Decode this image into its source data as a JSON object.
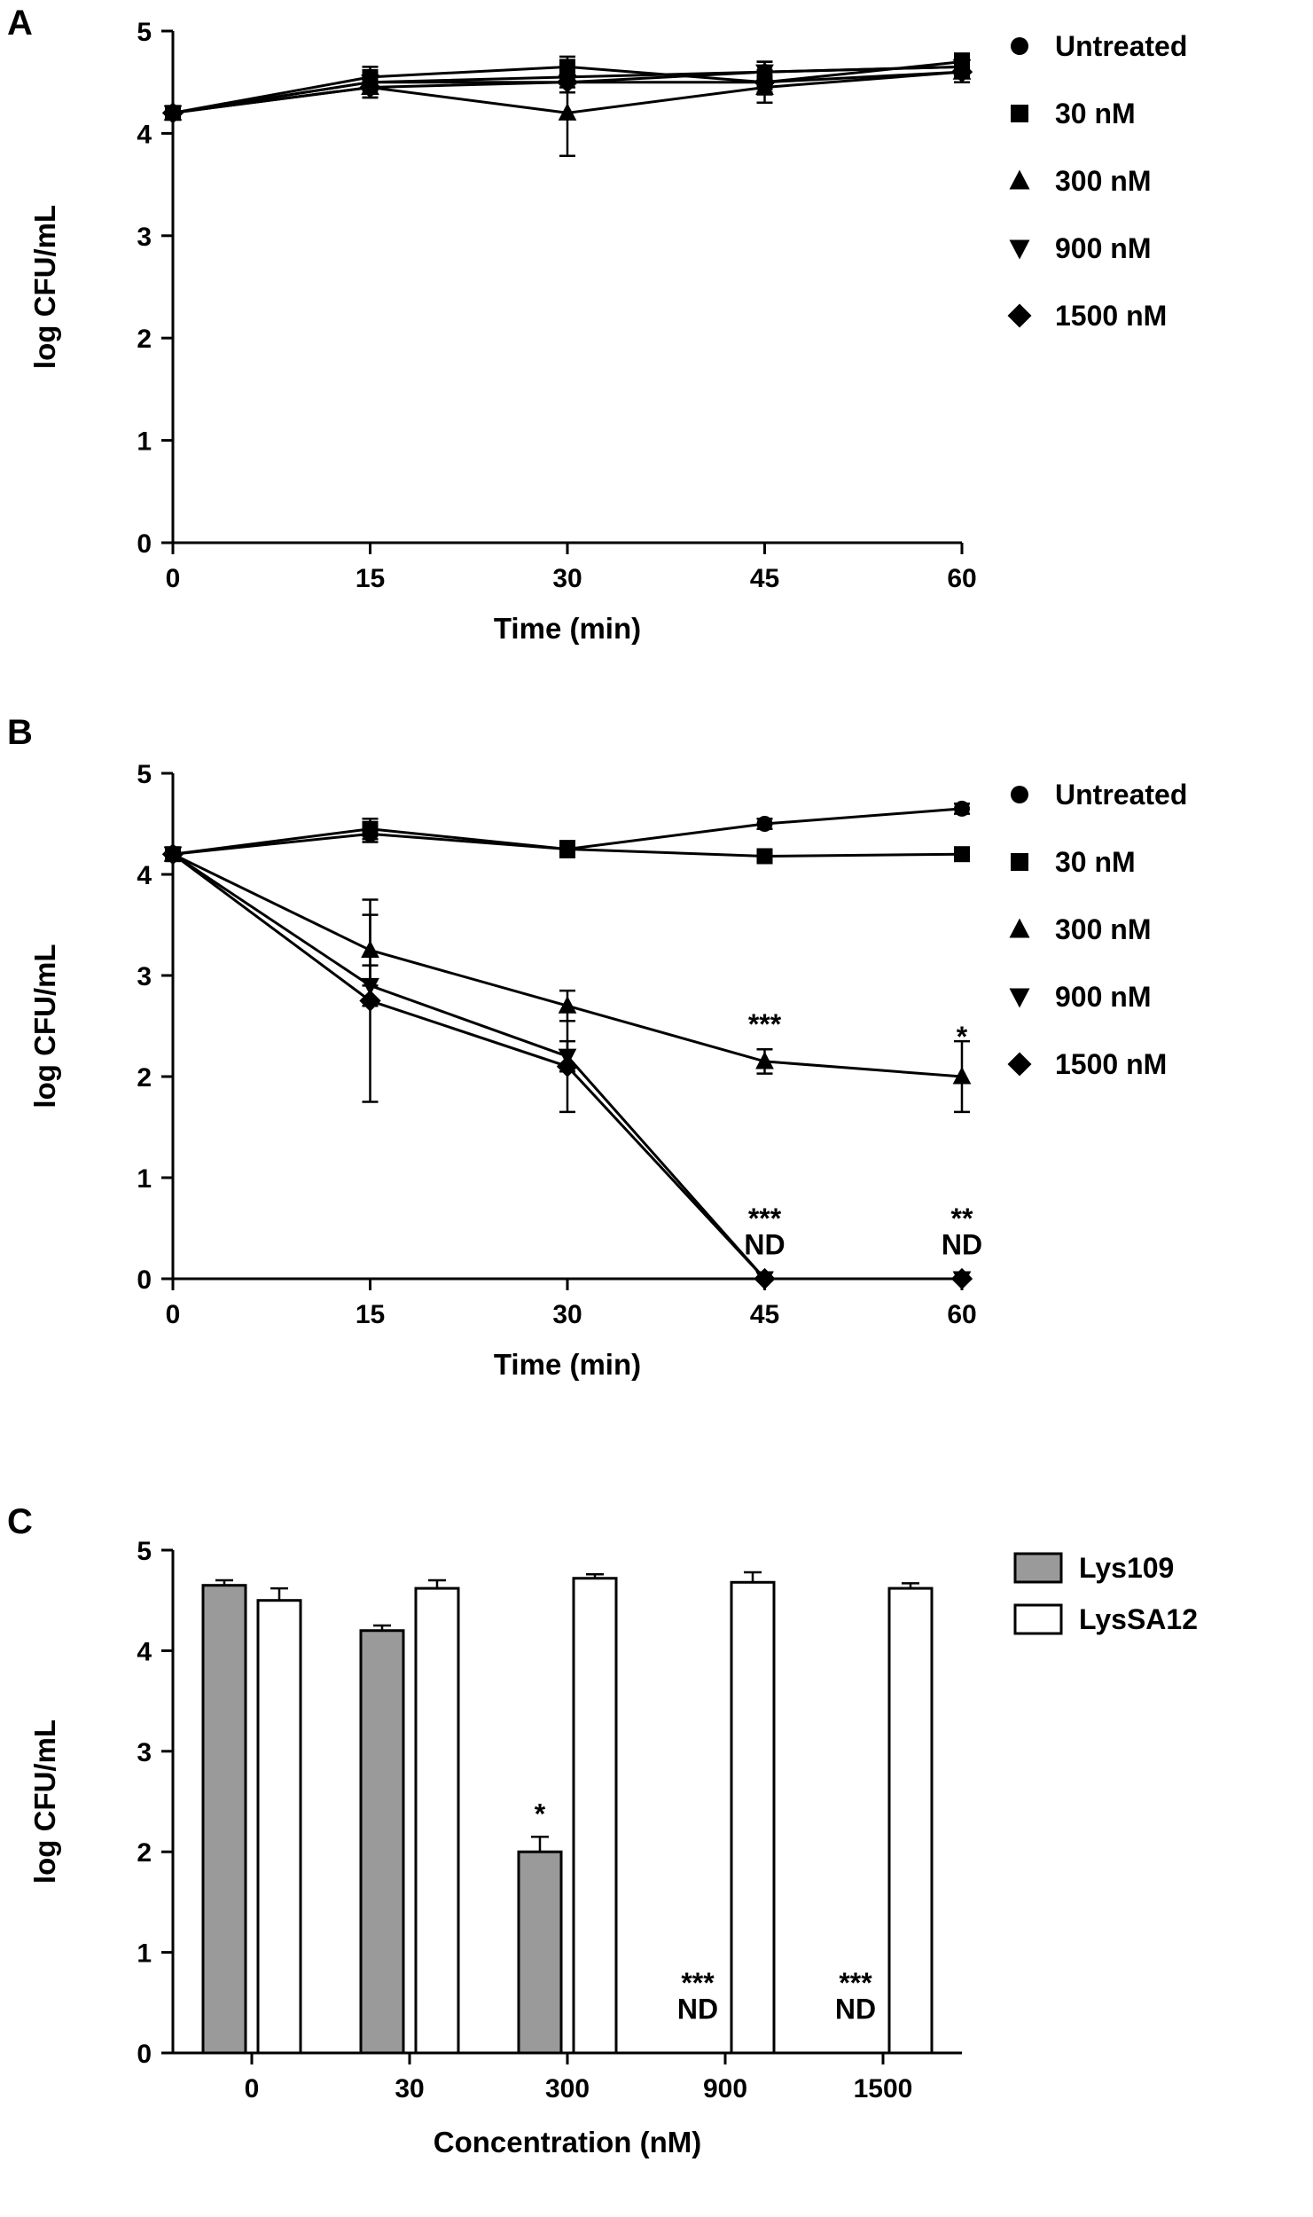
{
  "panels": [
    {
      "label": "A"
    },
    {
      "label": "B"
    },
    {
      "label": "C"
    }
  ],
  "chart_data": [
    {
      "panel": "A",
      "type": "line",
      "title": "",
      "xlabel": "Time (min)",
      "ylabel": "log CFU/mL",
      "x": [
        0,
        15,
        30,
        45,
        60
      ],
      "xlim": [
        0,
        60
      ],
      "ylim": [
        0,
        5
      ],
      "xticks": [
        0,
        15,
        30,
        45,
        60
      ],
      "yticks": [
        0,
        1,
        2,
        3,
        4,
        5
      ],
      "legend_position": "right",
      "series": [
        {
          "name": "Untreated",
          "marker": "circle",
          "values": [
            4.2,
            4.5,
            4.55,
            4.6,
            4.65
          ],
          "errors": [
            0.05,
            0.08,
            0.1,
            0.1,
            0.08
          ]
        },
        {
          "name": "30 nM",
          "marker": "square",
          "values": [
            4.2,
            4.55,
            4.65,
            4.5,
            4.7
          ],
          "errors": [
            0.05,
            0.1,
            0.1,
            0.12,
            0.08
          ]
        },
        {
          "name": "300 nM",
          "marker": "triangle-up",
          "values": [
            4.2,
            4.45,
            4.2,
            4.45,
            4.6
          ],
          "errors": [
            0.05,
            0.1,
            0.42,
            0.15,
            0.1
          ]
        },
        {
          "name": "900 nM",
          "marker": "triangle-down",
          "values": [
            4.2,
            4.5,
            4.5,
            4.6,
            4.65
          ],
          "errors": [
            0.05,
            0.08,
            0.1,
            0.1,
            0.1
          ]
        },
        {
          "name": "1500 nM",
          "marker": "diamond",
          "values": [
            4.2,
            4.45,
            4.5,
            4.5,
            4.6
          ],
          "errors": [
            0.05,
            0.1,
            0.1,
            0.1,
            0.1
          ]
        }
      ],
      "annotations": []
    },
    {
      "panel": "B",
      "type": "line",
      "title": "",
      "xlabel": "Time (min)",
      "ylabel": "log CFU/mL",
      "x": [
        0,
        15,
        30,
        45,
        60
      ],
      "xlim": [
        0,
        60
      ],
      "ylim": [
        0,
        5
      ],
      "xticks": [
        0,
        15,
        30,
        45,
        60
      ],
      "yticks": [
        0,
        1,
        2,
        3,
        4,
        5
      ],
      "legend_position": "right",
      "series": [
        {
          "name": "Untreated",
          "marker": "circle",
          "values": [
            4.2,
            4.4,
            4.25,
            4.5,
            4.65
          ],
          "errors": [
            0.05,
            0.08,
            0.05,
            0.05,
            0.05
          ]
        },
        {
          "name": "30 nM",
          "marker": "square",
          "values": [
            4.2,
            4.45,
            4.25,
            4.18,
            4.2
          ],
          "errors": [
            0.05,
            0.1,
            0.08,
            0.05,
            0.05
          ]
        },
        {
          "name": "300 nM",
          "marker": "triangle-up",
          "values": [
            4.2,
            3.25,
            2.7,
            2.15,
            2.0
          ],
          "errors": [
            0.05,
            0.35,
            0.15,
            0.12,
            0.35
          ]
        },
        {
          "name": "900 nM",
          "marker": "triangle-down",
          "values": [
            4.2,
            2.9,
            2.2,
            0,
            0
          ],
          "errors": [
            0.05,
            0.2,
            0.15,
            0,
            0
          ]
        },
        {
          "name": "1500 nM",
          "marker": "diamond",
          "values": [
            4.2,
            2.75,
            2.1,
            0,
            0
          ],
          "errors": [
            0.05,
            1.0,
            0.45,
            0,
            0
          ]
        }
      ],
      "annotations": [
        {
          "x": 45,
          "y": 2.42,
          "text": "***"
        },
        {
          "x": 60,
          "y": 2.3,
          "text": "*"
        },
        {
          "x": 45,
          "y": 0.5,
          "text": "***"
        },
        {
          "x": 45,
          "y": 0.24,
          "text": "ND"
        },
        {
          "x": 60,
          "y": 0.5,
          "text": "**"
        },
        {
          "x": 60,
          "y": 0.24,
          "text": "ND"
        }
      ]
    },
    {
      "panel": "C",
      "type": "bar",
      "title": "",
      "xlabel": "Concentration (nM)",
      "ylabel": "log CFU/mL",
      "categories": [
        "0",
        "30",
        "300",
        "900",
        "1500"
      ],
      "ylim": [
        0,
        5
      ],
      "yticks": [
        0,
        1,
        2,
        3,
        4,
        5
      ],
      "legend_position": "right",
      "series": [
        {
          "name": "Lys109",
          "fill": "#9a9a9a",
          "values": [
            4.65,
            4.2,
            2.0,
            null,
            null
          ],
          "errors": [
            0.05,
            0.05,
            0.15,
            null,
            null
          ]
        },
        {
          "name": "LysSA12",
          "fill": "#ffffff",
          "values": [
            4.5,
            4.62,
            4.72,
            4.68,
            4.62
          ],
          "errors": [
            0.12,
            0.08,
            0.04,
            0.1,
            0.05
          ]
        }
      ],
      "annotations": [
        {
          "cat": 2,
          "series": 0,
          "y": 2.28,
          "text": "*"
        },
        {
          "cat": 3,
          "series": 0,
          "y": 0.6,
          "text": "***"
        },
        {
          "cat": 3,
          "series": 0,
          "y": 0.34,
          "text": "ND"
        },
        {
          "cat": 4,
          "series": 0,
          "y": 0.6,
          "text": "***"
        },
        {
          "cat": 4,
          "series": 0,
          "y": 0.34,
          "text": "ND"
        }
      ]
    }
  ]
}
